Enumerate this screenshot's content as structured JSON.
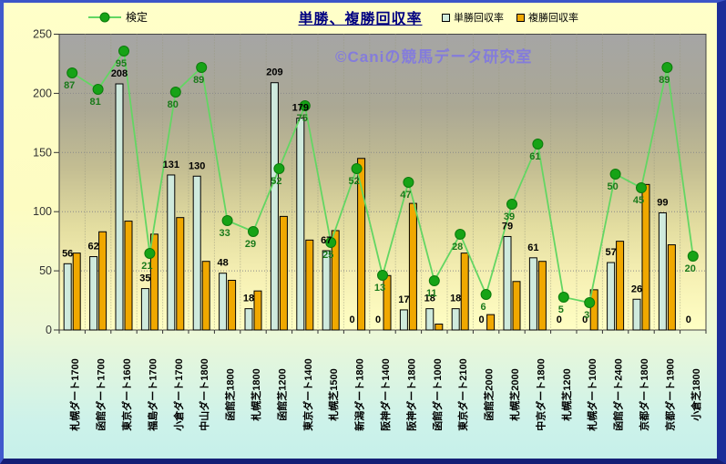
{
  "window": {
    "title": "単勝、複勝回収率"
  },
  "legend": {
    "kentei_label": "検定",
    "tansho_label": "単勝回収率",
    "fukusho_label": "複勝回収率"
  },
  "watermark": "©Caniの競馬データ研究室",
  "colors": {
    "tansho_bar": "#cfeadd",
    "fukusho_bar": "#f0a800",
    "line": "#63d663",
    "marker_fill": "#16a316",
    "marker_edge": "#0c7a0c",
    "bar_label": "#000000",
    "line_label": "#1a7a1a",
    "title": "#000080",
    "watermark": "#7d74e8",
    "axis_text": "#333333"
  },
  "chart_data": {
    "type": "bar",
    "title": "単勝、複勝回収率",
    "categories": [
      "札幌ダート1700",
      "函館ダート1700",
      "東京ダート1600",
      "福島ダート1700",
      "小倉ダート1700",
      "中山ダート1800",
      "函館芝1800",
      "札幌芝1800",
      "函館芝1200",
      "東京ダート1400",
      "札幌芝1500",
      "新潟ダート1800",
      "阪神ダート1400",
      "阪神ダート1800",
      "函館ダート1000",
      "東京ダート2100",
      "函館芝2000",
      "札幌芝2000",
      "中京ダート1800",
      "札幌芝1200",
      "札幌ダート1000",
      "函館ダート2400",
      "京都ダート1800",
      "京都ダート1900",
      "小倉芝1800"
    ],
    "series": [
      {
        "name": "単勝回収率",
        "type": "bar",
        "values": [
          56,
          62,
          208,
          35,
          131,
          130,
          48,
          18,
          209,
          179,
          67,
          0,
          0,
          17,
          18,
          18,
          0,
          79,
          61,
          0,
          0,
          57,
          26,
          99,
          0
        ],
        "labels_visible": true
      },
      {
        "name": "複勝回収率",
        "type": "bar",
        "values": [
          65,
          83,
          92,
          81,
          95,
          58,
          42,
          33,
          96,
          76,
          84,
          145,
          46,
          107,
          5,
          65,
          13,
          41,
          58,
          0,
          34,
          75,
          123,
          72,
          0
        ],
        "labels_visible": false
      },
      {
        "name": "検定",
        "type": "line",
        "values": [
          87,
          81,
          95,
          21,
          80,
          89,
          33,
          29,
          52,
          75,
          25,
          52,
          13,
          47,
          11,
          28,
          6,
          39,
          61,
          5,
          3,
          50,
          45,
          89,
          20
        ],
        "labels_visible": true
      }
    ],
    "ylim": [
      0,
      250
    ],
    "yticks": [
      0,
      50,
      100,
      150,
      200,
      250
    ],
    "grid": true,
    "legend_position": "top"
  }
}
